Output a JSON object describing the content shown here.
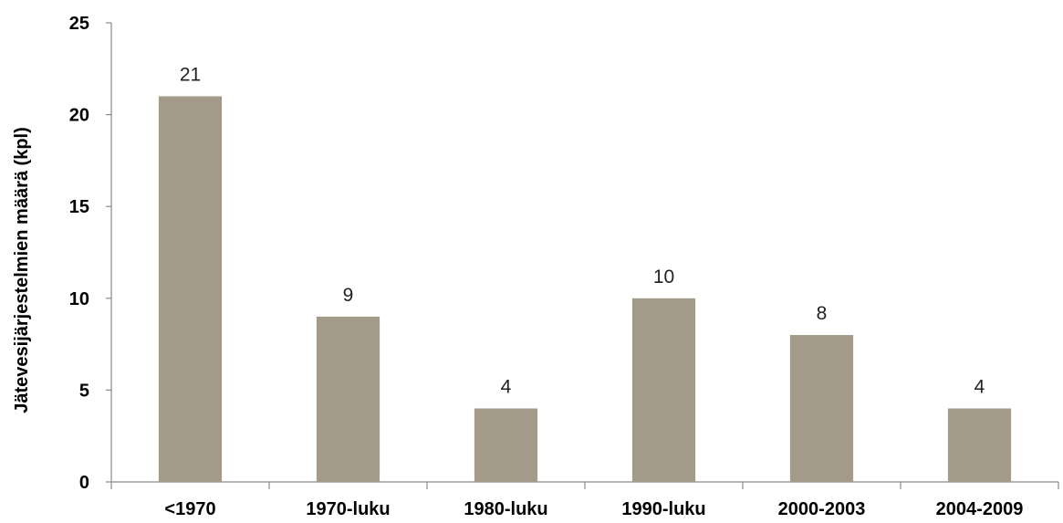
{
  "chart_data": {
    "type": "bar",
    "categories": [
      "<1970",
      "1970-luku",
      "1980-luku",
      "1990-luku",
      "2000-2003",
      "2004-2009"
    ],
    "values": [
      21,
      9,
      4,
      10,
      8,
      4
    ],
    "data_labels": [
      "21",
      "9",
      "4",
      "10",
      "8",
      "4"
    ],
    "title": "",
    "xlabel": "",
    "ylabel": "Jätevesijärjestelmien määrä (kpl)",
    "ylim": [
      0,
      25
    ],
    "yticks": [
      0,
      5,
      10,
      15,
      20,
      25
    ],
    "grid": false,
    "legend": "none",
    "bar_color": "#a39a89"
  }
}
